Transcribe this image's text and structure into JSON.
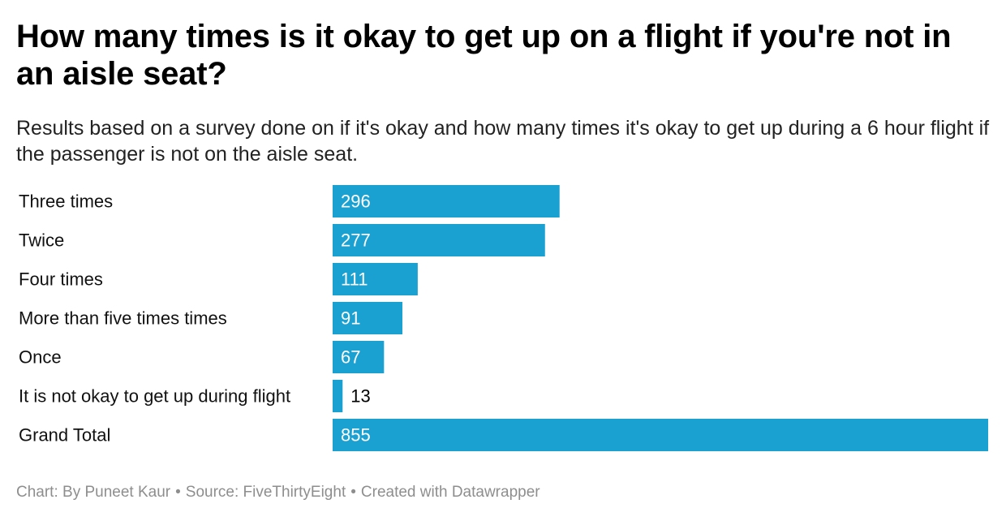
{
  "title": "How many times is it okay to get up on a flight if you're not in an aisle seat?",
  "subtitle": "Results based on a survey done on if it's okay and how many times it's okay to get up during a 6 hour flight if the passenger is not on the aisle seat.",
  "footer": {
    "chart_by": "Chart: By Puneet Kaur",
    "source": "Source: FiveThirtyEight",
    "created_with": "Created with Datawrapper",
    "separator": "•"
  },
  "colors": {
    "bar": "#1aa1d2",
    "label_inside": "#ffffff",
    "label_outside": "#000000"
  },
  "chart_data": {
    "type": "bar",
    "orientation": "horizontal",
    "title": "How many times is it okay to get up on a flight if you're not in an aisle seat?",
    "subtitle": "Results based on a survey done on if it's okay and how many times it's okay to get up during a 6 hour flight if the passenger is not on the aisle seat.",
    "categories": [
      "Three times",
      "Twice",
      "Four times",
      "More than five times times",
      "Once",
      "It is not okay to get up during flight",
      "Grand Total"
    ],
    "values": [
      296,
      277,
      111,
      91,
      67,
      13,
      855
    ],
    "xlim": [
      0,
      855
    ],
    "xlabel": "",
    "ylabel": "",
    "grid": false,
    "legend": "none",
    "data_labels": true
  }
}
